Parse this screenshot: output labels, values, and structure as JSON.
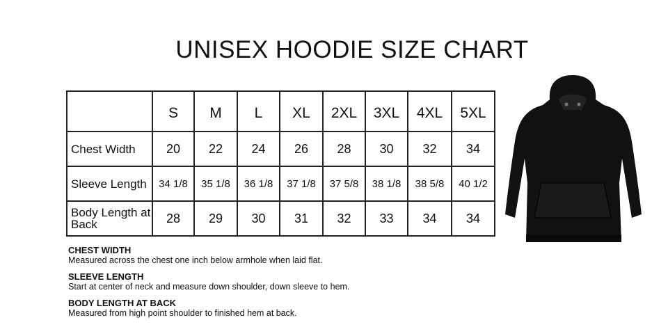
{
  "title": "UNISEX HOODIE SIZE CHART",
  "table": {
    "sizes": [
      "S",
      "M",
      "L",
      "XL",
      "2XL",
      "3XL",
      "4XL",
      "5XL"
    ],
    "rows": [
      {
        "label": "Chest Width",
        "values": [
          "20",
          "22",
          "24",
          "26",
          "28",
          "30",
          "32",
          "34"
        ]
      },
      {
        "label": "Sleeve Length",
        "values": [
          "34 1/8",
          "35 1/8",
          "36 1/8",
          "37 1/8",
          "37 5/8",
          "38 1/8",
          "38 5/8",
          "40 1/2"
        ]
      },
      {
        "label": "Body Length at Back",
        "values": [
          "28",
          "29",
          "30",
          "31",
          "32",
          "33",
          "34",
          "34"
        ]
      }
    ]
  },
  "notes": [
    {
      "heading": "CHEST WIDTH",
      "text": "Measured across the chest one inch below armhole when laid flat."
    },
    {
      "heading": "SLEEVE LENGTH",
      "text": "Start at center of neck and measure down shoulder, down sleeve to hem."
    },
    {
      "heading": "BODY LENGTH AT BACK",
      "text": "Measured from high point shoulder to finished hem at back."
    }
  ],
  "image": {
    "subject": "black-hoodie",
    "color": "#111111"
  }
}
